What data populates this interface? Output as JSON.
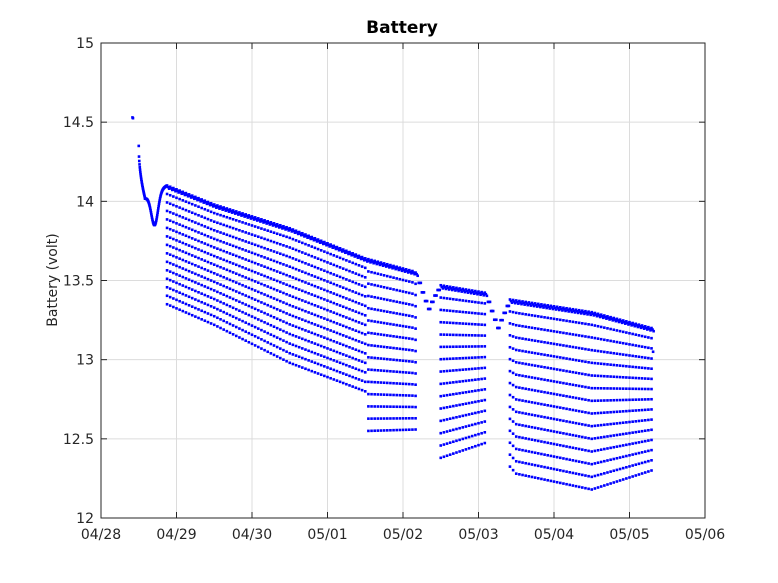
{
  "chart_data": {
    "type": "scatter",
    "title": "Battery",
    "xlabel": "",
    "ylabel": "Battery (volt)",
    "x_range": [
      "2024-04-28",
      "2024-05-06"
    ],
    "x_ticks": [
      "04/28",
      "04/29",
      "04/30",
      "05/01",
      "05/02",
      "05/03",
      "05/04",
      "05/05",
      "05/06"
    ],
    "ylim": [
      12,
      15
    ],
    "y_ticks": [
      "12",
      "12.5",
      "13",
      "13.5",
      "14",
      "14.5",
      "15"
    ],
    "grid": true,
    "marker_color": "#0000ff",
    "series": [
      {
        "name": "",
        "upper_envelope": [
          {
            "x": "2024-04-28 10:00",
            "y": 14.53
          },
          {
            "x": "2024-04-28 12:00",
            "y": 14.35
          },
          {
            "x": "2024-04-28 14:00",
            "y": 14.02
          },
          {
            "x": "2024-04-28 21:00",
            "y": 14.1
          },
          {
            "x": "2024-04-29 12:00",
            "y": 13.98
          },
          {
            "x": "2024-04-30 12:00",
            "y": 13.83
          },
          {
            "x": "2024-05-01 12:00",
            "y": 13.64
          },
          {
            "x": "2024-05-02 03:00",
            "y": 13.56
          },
          {
            "x": "2024-05-02 12:00",
            "y": 13.47
          },
          {
            "x": "2024-05-03 03:00",
            "y": 13.42
          },
          {
            "x": "2024-05-03 10:00",
            "y": 13.38
          },
          {
            "x": "2024-05-04 12:00",
            "y": 13.3
          },
          {
            "x": "2024-05-05 07:00",
            "y": 13.2
          }
        ],
        "lower_envelope": [
          {
            "x": "2024-04-28 21:00",
            "y": 13.35
          },
          {
            "x": "2024-04-29 12:00",
            "y": 13.22
          },
          {
            "x": "2024-04-30 12:00",
            "y": 12.98
          },
          {
            "x": "2024-05-01 12:00",
            "y": 12.8
          },
          {
            "x": "2024-05-01 13:00",
            "y": 12.55
          },
          {
            "x": "2024-05-02 06:00",
            "y": 12.56
          },
          {
            "x": "2024-05-02 12:00",
            "y": 12.38
          },
          {
            "x": "2024-05-03 03:00",
            "y": 12.48
          },
          {
            "x": "2024-05-03 12:00",
            "y": 12.28
          },
          {
            "x": "2024-05-04 12:00",
            "y": 12.18
          },
          {
            "x": "2024-05-05 07:00",
            "y": 12.3
          }
        ],
        "events": [
          {
            "x": "2024-04-28 17:00",
            "y": 13.85,
            "note": "dip"
          },
          {
            "x": "2024-05-02 08:00",
            "y": 13.32,
            "note": "dip"
          },
          {
            "x": "2024-05-03 06:00",
            "y": 13.2,
            "note": "dip"
          }
        ]
      }
    ]
  }
}
